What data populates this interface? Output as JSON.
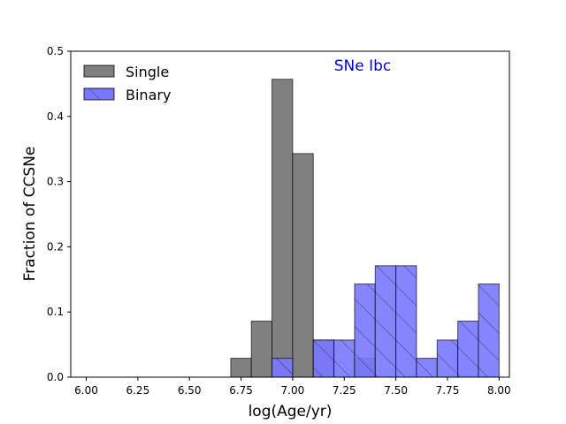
{
  "chart_data": {
    "type": "bar",
    "annotation": "SNe Ibc",
    "annotation_color": "#0000cc",
    "xlabel": "log(Age/yr)",
    "ylabel": "Fraction of CCSNe",
    "xlim": [
      5.925,
      8.05
    ],
    "ylim": [
      0,
      0.5
    ],
    "x_ticks": [
      "6.00",
      "6.25",
      "6.50",
      "6.75",
      "7.00",
      "7.25",
      "7.50",
      "7.75",
      "8.00"
    ],
    "y_ticks": [
      "0.0",
      "0.1",
      "0.2",
      "0.3",
      "0.4",
      "0.5"
    ],
    "bin_edges": [
      6.0,
      6.1,
      6.2,
      6.3,
      6.4,
      6.5,
      6.6,
      6.7,
      6.8,
      6.9,
      7.0,
      7.1,
      7.2,
      7.3,
      7.4,
      7.5,
      7.6,
      7.7,
      7.8,
      7.9,
      8.0
    ],
    "grid": false,
    "legend_position": "top-left",
    "series": [
      {
        "name": "Single",
        "color": "#808080",
        "hatch": "none",
        "values": [
          0,
          0,
          0,
          0,
          0,
          0,
          0,
          0.029,
          0.086,
          0.457,
          0.343,
          0.057,
          0,
          0.029,
          0,
          0,
          0,
          0,
          0,
          0
        ]
      },
      {
        "name": "Binary",
        "color": "#7878ff",
        "hatch": "diagonal",
        "values": [
          0,
          0,
          0,
          0,
          0,
          0,
          0,
          0,
          0,
          0.029,
          0,
          0.057,
          0.057,
          0.143,
          0.171,
          0.171,
          0.029,
          0.057,
          0.086,
          0.143
        ]
      }
    ]
  }
}
